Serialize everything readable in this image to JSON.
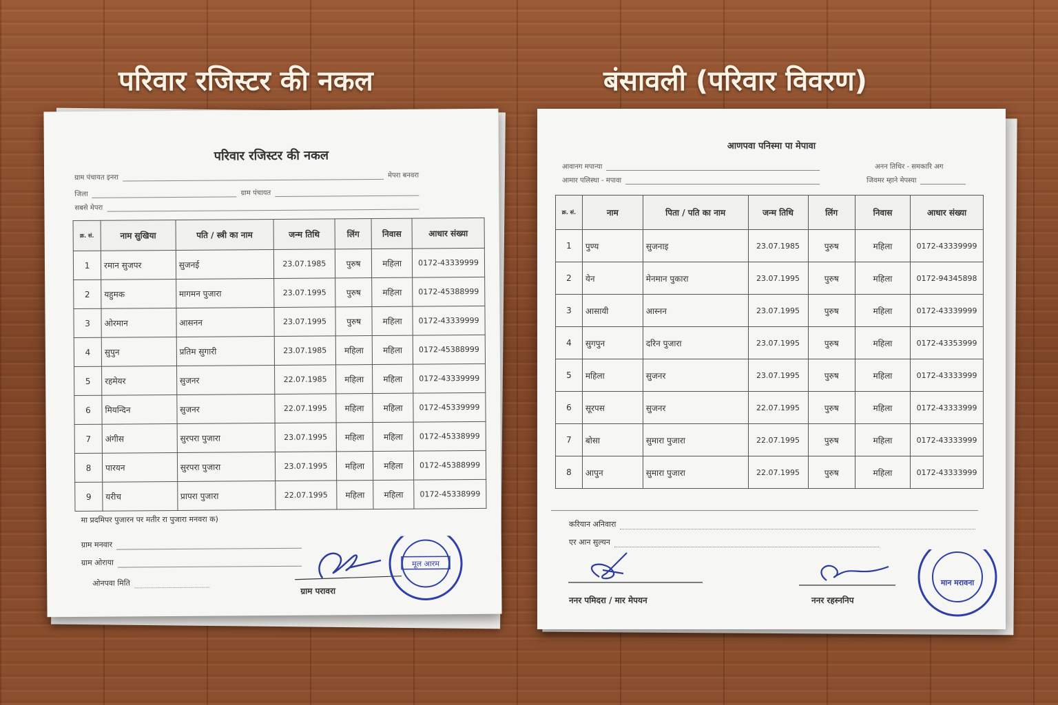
{
  "titles": {
    "left": "परिवार रजिस्टर की नकल",
    "right": "बंसावली (परिवार विवरण)"
  },
  "left_doc": {
    "heading": "परिवार रजिस्टर की नकल",
    "fields": [
      "ग्राम पंचायत इनरा",
      "मेपरा बनवरा",
      "जिला",
      "ग्राम पंचायत",
      "सबसे मेपरा"
    ],
    "columns": [
      "क्र. सं.",
      "नाम सुखिया",
      "पति / स्त्री का नाम",
      "जन्म तिथि",
      "लिंग",
      "निवास",
      "आधार संख्या"
    ],
    "rows": [
      [
        "1",
        "रमान सुजपर",
        "सुजनई",
        "23.07.1985",
        "पुरुष",
        "महिला",
        "0172-43339999"
      ],
      [
        "2",
        "यहुमक",
        "मागमन पुजारा",
        "23.07.1995",
        "पुरुष",
        "महिला",
        "0172-45388999"
      ],
      [
        "3",
        "ओरमान",
        "आसनन",
        "23.07.1995",
        "पुरुष",
        "महिला",
        "0172-43339999"
      ],
      [
        "4",
        "सुपुन",
        "प्रतिम सुगारी",
        "23.07.1985",
        "महिला",
        "महिला",
        "0172-45388999"
      ],
      [
        "5",
        "रहमेयर",
        "सुजनर",
        "22.07.1985",
        "महिला",
        "महिला",
        "0172-43339999"
      ],
      [
        "6",
        "मियन्दिन",
        "सुजनर",
        "22.07.1995",
        "महिला",
        "महिला",
        "0172-45339999"
      ],
      [
        "7",
        "अंगीस",
        "सुरपरा पुजारा",
        "23.07.1995",
        "महिला",
        "महिला",
        "0172-45338999"
      ],
      [
        "8",
        "पारयन",
        "सुरपरा पुजारा",
        "23.07.1995",
        "महिला",
        "महिला",
        "0172-45388999"
      ],
      [
        "9",
        "यरीच",
        "प्रापरा पुजारा",
        "22.07.1995",
        "महिला",
        "महिला",
        "0172-45338999"
      ]
    ],
    "note": "मा प्रदमिपर पुजारन पर मतीर रा पुजारा मनवरा क)",
    "footer_fields": [
      "ग्राम मनवार",
      "ग्राम ओराया",
      "ओनपवा मिति"
    ],
    "signatory": "ग्राम परावरा",
    "stamp_text": "मूल आरम"
  },
  "right_doc": {
    "heading": "आणपवा पनिस्मा पा मेपावा",
    "fields": [
      "आवानग मपान्या",
      "आमार पलिस्था - मपावा",
      "अनन तिथिर - समकारि अग",
      "जिवमर म्हाने मेपस्या"
    ],
    "columns": [
      "क्र. सं.",
      "नाम",
      "पिता / पति का नाम",
      "जन्म तिथि",
      "लिंग",
      "निवास",
      "आधार संख्या"
    ],
    "rows": [
      [
        "1",
        "पुण्य",
        "सुजनाइ",
        "23.07.1985",
        "पुरुष",
        "महिला",
        "0172-43339999"
      ],
      [
        "2",
        "येन",
        "मेनमान पुकारा",
        "23.07.1995",
        "पुरुष",
        "महिला",
        "0172-94345898"
      ],
      [
        "3",
        "आसायी",
        "आस्नन",
        "23.07.1995",
        "पुरुष",
        "महिला",
        "0172-43339999"
      ],
      [
        "4",
        "सुगपुन",
        "दरिन पुजारा",
        "23.07.1995",
        "पुरुष",
        "महिला",
        "0172-43353999"
      ],
      [
        "5",
        "महिला",
        "सुजनर",
        "23.07.1995",
        "पुरुष",
        "महिला",
        "0172-43333999"
      ],
      [
        "6",
        "सूरपस",
        "सुजनर",
        "22.07.1995",
        "पुरुष",
        "महिला",
        "0172-43333999"
      ],
      [
        "7",
        "बोसा",
        "सुमारा पुजारा",
        "22.07.1995",
        "पुरुष",
        "महिला",
        "0172-43333999"
      ],
      [
        "8",
        "आपुन",
        "सुमारा पुजारा",
        "22.07.1995",
        "पुरुष",
        "महिला",
        "0172-43333999"
      ]
    ],
    "footer_fields": [
      "करियान अनिवारा",
      "एर आन सुल्यन"
    ],
    "signatories": [
      "ननर पमिदरा / मार मेपयन",
      "ननर रहस्ननिप"
    ],
    "stamp_text": "मान मरावना"
  },
  "colors": {
    "wood": "#8a4d2c",
    "paper": "#f6f6f4",
    "stamp": "#2f3fa8",
    "ink": "#333333"
  }
}
